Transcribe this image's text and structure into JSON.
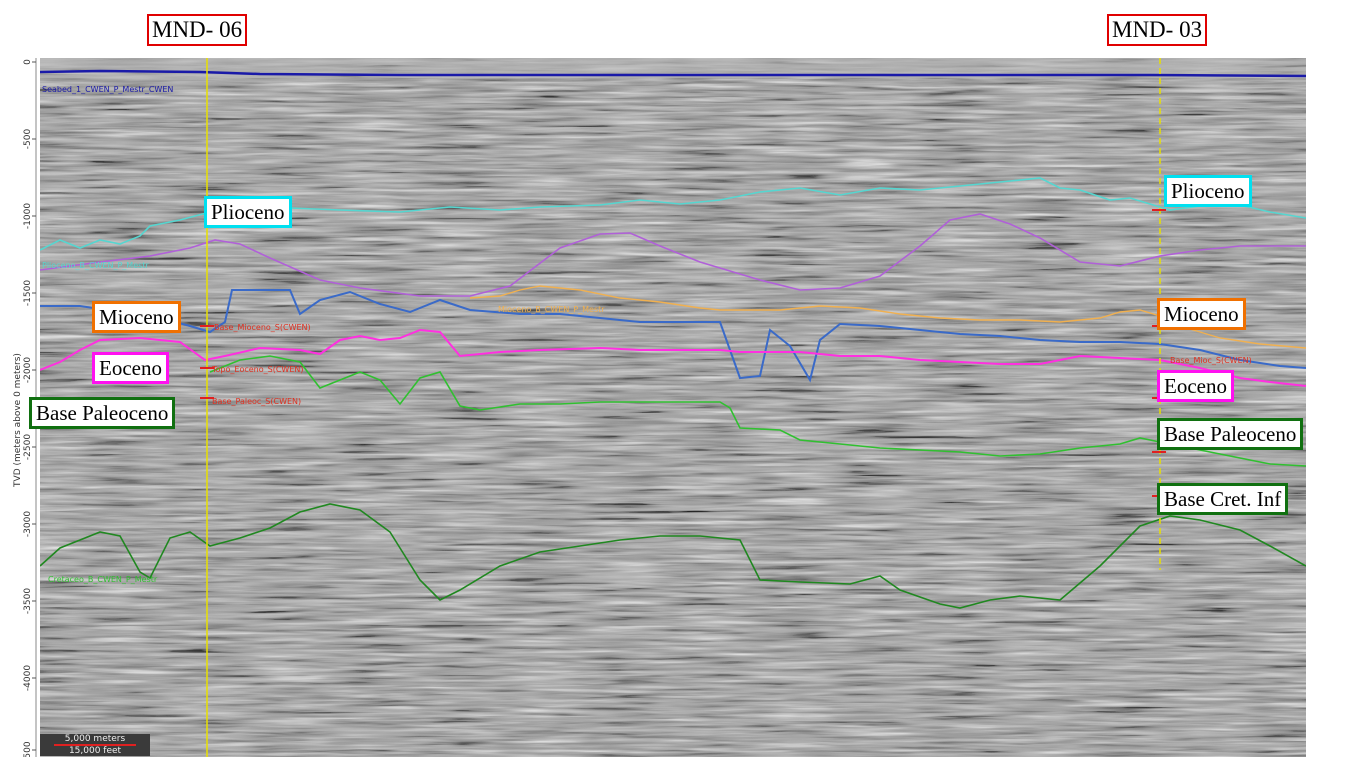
{
  "wells": {
    "left": "MND- 06",
    "right": "MND- 03"
  },
  "axis": {
    "y_label": "TVD (meters above 0 meters)",
    "ticks": [
      "0",
      "-500",
      "-1000",
      "-1500",
      "-2000",
      "-2500",
      "-3000",
      "-3500",
      "-4000",
      "500"
    ]
  },
  "horizons": {
    "seabed": "Seabed_1_CWEN_P_Mestr_CWEN",
    "plioceno": "Plioceno_B_CWEN_P_Mestr",
    "mioceno": "Mioceno_B_CWEN_P_Mestr",
    "base_mioceno": "Base_Mioceno_S(CWEN)",
    "cretaceo": "Cretaceo_B_CWEN_P_Mestr",
    "eoceno_top": "Topo_Eoceno_S(CWEN)",
    "base_paleoceno": "Base_Paleoc_S(CWEN)",
    "right_marker": "Base_Mioc_S(CWEN)"
  },
  "labels": {
    "plioceno_left": "Plioceno",
    "plioceno_right": "Plioceno",
    "mioceno_left": "Mioceno",
    "mioceno_right": "Mioceno",
    "eoceno_left": "Eoceno",
    "eoceno_right": "Eoceno",
    "base_paleoceno_left": "Base Paleoceno",
    "base_paleoceno_right": "Base Paleoceno",
    "base_cret_right": "Base Cret. Inf"
  },
  "scale": {
    "meters": "5,000 meters",
    "feet": "15,000 feet"
  },
  "colors": {
    "seabed": "#1a1aa8",
    "plioceno": "#55d6d0",
    "mioceno_purple": "#b060d8",
    "mioceno_orange": "#f0b050",
    "blue_horizon": "#3a6ac8",
    "eoceno": "#ff30e0",
    "paleoceno": "#30c030",
    "cretaceo": "#208820",
    "well_line": "#e8e000",
    "label_cyan": "#00e0f0",
    "label_orange": "#f07000",
    "label_magenta": "#ff10f0",
    "label_green": "#107010",
    "label_red": "#e00000"
  }
}
